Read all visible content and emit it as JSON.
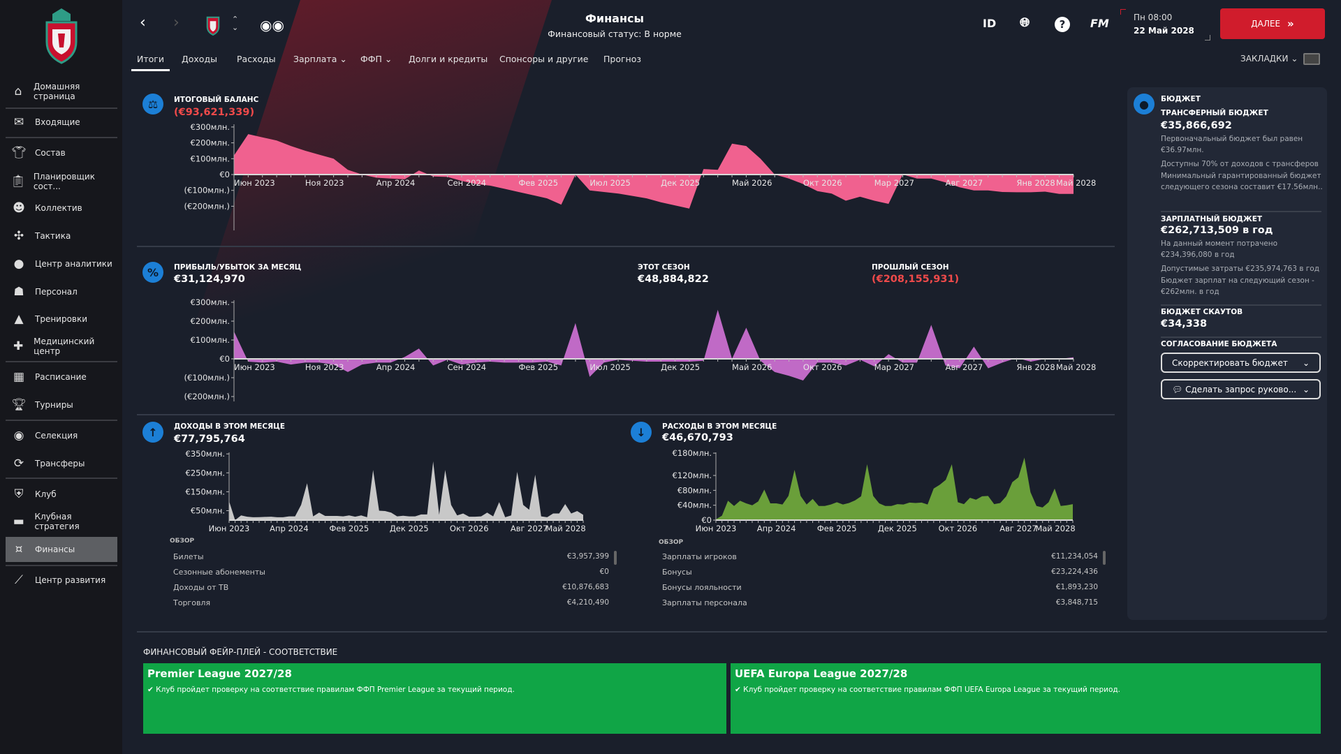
{
  "sidebar": {
    "items": [
      {
        "label": "Домашняя страница",
        "icon": "home-icon"
      },
      {
        "label": "Входящие",
        "icon": "mail-icon"
      },
      {
        "label": "Состав",
        "icon": "shirt-icon"
      },
      {
        "label": "Планировщик сост...",
        "icon": "clipboard-icon"
      },
      {
        "label": "Коллектив",
        "icon": "head-icon"
      },
      {
        "label": "Тактика",
        "icon": "tactics-icon"
      },
      {
        "label": "Центр аналитики",
        "icon": "analytics-icon"
      },
      {
        "label": "Персонал",
        "icon": "staff-icon"
      },
      {
        "label": "Тренировки",
        "icon": "cone-icon"
      },
      {
        "label": "Медицинский центр",
        "icon": "medical-icon"
      },
      {
        "label": "Расписание",
        "icon": "calendar-icon"
      },
      {
        "label": "Турниры",
        "icon": "trophy-icon"
      },
      {
        "label": "Селекция",
        "icon": "binoculars-icon"
      },
      {
        "label": "Трансферы",
        "icon": "transfer-icon"
      },
      {
        "label": "Клуб",
        "icon": "shield-icon"
      },
      {
        "label": "Клубная стратегия",
        "icon": "briefcase-icon"
      },
      {
        "label": "Финансы",
        "icon": "money-icon",
        "active": true
      },
      {
        "label": "Центр развития",
        "icon": "growth-icon"
      }
    ]
  },
  "header": {
    "title": "Финансы",
    "subtitle": "Финансовый статус: В норме",
    "id_label": "ID",
    "fm_label": "FM",
    "day_time": "Пн 08:00",
    "date": "22 Май 2028",
    "next_label": "ДАЛЕЕ",
    "bookmarks_label": "ЗАКЛАДКИ"
  },
  "tabs": [
    {
      "label": "Итоги",
      "active": true
    },
    {
      "label": "Доходы"
    },
    {
      "label": "Расходы"
    },
    {
      "label": "Зарплата ⌄"
    },
    {
      "label": "ФФП ⌄"
    },
    {
      "label": "Долги и кредиты"
    },
    {
      "label": "Спонсоры и другие"
    },
    {
      "label": "Прогноз"
    }
  ],
  "balance": {
    "title": "ИТОГОВЫЙ БАЛАНС",
    "value": "(€93,621,339)"
  },
  "profit": {
    "title": "ПРИБЫЛЬ/УБЫТОК ЗА МЕСЯЦ",
    "value": "€31,124,970",
    "this_season_label": "ЭТОТ СЕЗОН",
    "this_season_value": "€48,884,822",
    "last_season_label": "ПРОШЛЫЙ СЕЗОН",
    "last_season_value": "(€208,155,931)"
  },
  "income": {
    "title": "ДОХОДЫ В ЭТОМ МЕСЯЦЕ",
    "value": "€77,795,764",
    "overview_label": "ОБЗОР",
    "rows": [
      {
        "name": "Билеты",
        "value": "€3,957,399"
      },
      {
        "name": "Сезонные абонементы",
        "value": "€0"
      },
      {
        "name": "Доходы от ТВ",
        "value": "€10,876,683"
      },
      {
        "name": "Торговля",
        "value": "€4,210,490"
      }
    ]
  },
  "expenses": {
    "title": "РАСХОДЫ В ЭТОМ МЕСЯЦЕ",
    "value": "€46,670,793",
    "overview_label": "ОБЗОР",
    "rows": [
      {
        "name": "Зарплаты игроков",
        "value": "€11,234,054"
      },
      {
        "name": "Бонусы",
        "value": "€23,224,436"
      },
      {
        "name": "Бонусы лояльности",
        "value": "€1,893,230"
      },
      {
        "name": "Зарплаты персонала",
        "value": "€3,848,715"
      }
    ]
  },
  "budget": {
    "title": "БЮДЖЕТ",
    "transfer_title": "ТРАНСФЕРНЫЙ БЮДЖЕТ",
    "transfer_value": "€35,866,692",
    "transfer_note1": "Первоначальный бюджет был равен €36.97млн.",
    "transfer_note2": "Доступны 70% от доходов с трансферов",
    "transfer_note3": "Минимальный гарантированный бюджет следующего сезона составит €17.56млн..",
    "wage_title": "ЗАРПЛАТНЫЙ БЮДЖЕТ",
    "wage_value": "€262,713,509 в год",
    "wage_note1": "На данный момент потрачено €234,396,080 в год",
    "wage_note2": "Допустимые затраты €235,974,763 в год",
    "wage_note3": "Бюджет зарплат на следующий сезон - €262млн. в год",
    "scout_title": "БЮДЖЕТ СКАУТОВ",
    "scout_value": "€34,338",
    "agree_title": "СОГЛАСОВАНИЕ БЮДЖЕТА",
    "adjust_label": "Скорректировать бюджет",
    "request_label": "Сделать запрос руково..."
  },
  "ffp": {
    "title": "ФИНАНСОВЫЙ ФЕЙР-ПЛЕЙ - СООТВЕТСТВИЕ",
    "cards": [
      {
        "league": "Premier League 2027/28",
        "text": "Клуб пройдет проверку на соответствие правилам ФФП Premier League за текущий период."
      },
      {
        "league": "UEFA Europa League 2027/28",
        "text": "Клуб пройдет проверку на соответствие правилам ФФП UEFA Europa League за текущий период."
      }
    ],
    "color": "#10a546"
  },
  "colors": {
    "accent": "#d01c2c",
    "negative": "#f04a4a",
    "balance_fill": "#f0618f",
    "profit_fill": "#c06ac6",
    "income_fill": "#c8c8c8",
    "expense_fill": "#6a9f3a"
  },
  "chart_data": [
    {
      "type": "area",
      "id": "balance",
      "ylim": [
        -200,
        300
      ],
      "yticks": [
        "€300млн.",
        "€200млн.",
        "€100млн.",
        "€0",
        "(€100млн.)",
        "(€200млн.)"
      ],
      "ytick_values": [
        300,
        200,
        100,
        0,
        -100,
        -200
      ],
      "x_start": "Июн 2023",
      "x_end": "Май 2028",
      "xticks": [
        "Июн 2023",
        "Ноя 2023",
        "Апр 2024",
        "Сен 2024",
        "Фев 2025",
        "Июл 2025",
        "Дек 2025",
        "Май 2026",
        "Окт 2026",
        "Мар 2027",
        "Авг 2027",
        "Янв 2028",
        "Май 2028"
      ],
      "xtick_months": [
        0,
        5,
        10,
        15,
        20,
        25,
        30,
        35,
        40,
        45,
        50,
        55,
        59
      ],
      "values": [
        120,
        255,
        235,
        215,
        180,
        150,
        125,
        100,
        30,
        0,
        -20,
        -25,
        -30,
        25,
        -12,
        -15,
        -40,
        -60,
        -70,
        -90,
        -110,
        -130,
        -150,
        -190,
        0,
        -100,
        -110,
        -120,
        -135,
        -150,
        -175,
        -195,
        -215,
        35,
        30,
        195,
        180,
        100,
        0,
        -25,
        -60,
        -105,
        -120,
        -165,
        -140,
        -165,
        -185,
        0,
        -25,
        -25,
        -50,
        -80,
        -100,
        -100,
        -110,
        -112,
        -112,
        -108,
        -122,
        -122
      ]
    },
    {
      "type": "area",
      "id": "profit",
      "ylim": [
        -200,
        300
      ],
      "yticks": [
        "€300млн.",
        "€200млн.",
        "€100млн.",
        "€0",
        "(€100млн.)",
        "(€200млн.)"
      ],
      "ytick_values": [
        300,
        200,
        100,
        0,
        -100,
        -200
      ],
      "xticks": [
        "Июн 2023",
        "Ноя 2023",
        "Апр 2024",
        "Сен 2024",
        "Фев 2025",
        "Июл 2025",
        "Дек 2025",
        "Май 2026",
        "Окт 2026",
        "Мар 2027",
        "Авг 2027",
        "Янв 2028",
        "Май 2028"
      ],
      "xtick_months": [
        0,
        5,
        10,
        15,
        20,
        25,
        30,
        35,
        40,
        45,
        50,
        55,
        59
      ],
      "values": [
        145,
        -15,
        -20,
        -15,
        -30,
        -20,
        -20,
        -30,
        -70,
        -30,
        -20,
        -20,
        10,
        55,
        -35,
        -5,
        -30,
        -20,
        -15,
        -20,
        -20,
        -20,
        -15,
        -35,
        190,
        -95,
        -20,
        -5,
        -10,
        -15,
        -15,
        -15,
        -15,
        -10,
        260,
        0,
        165,
        -10,
        -70,
        -90,
        -115,
        -20,
        -20,
        -35,
        -5,
        -40,
        25,
        -20,
        -20,
        180,
        -35,
        -50,
        65,
        -50,
        -20,
        5,
        -15,
        0,
        0,
        8
      ]
    },
    {
      "type": "area",
      "id": "income",
      "ylim": [
        0,
        350
      ],
      "yticks": [
        "€350млн.",
        "€250млн.",
        "€150млн.",
        "€50млн."
      ],
      "ytick_values": [
        350,
        250,
        150,
        50
      ],
      "xticks": [
        "Июн 2023",
        "Апр 2024",
        "Фев 2025",
        "Дек 2025",
        "Окт 2026",
        "Авг 2027",
        "Май 2028"
      ],
      "xtick_months": [
        0,
        10,
        20,
        30,
        40,
        50,
        59
      ],
      "values": [
        100,
        0,
        25,
        18,
        15,
        16,
        17,
        18,
        15,
        15,
        20,
        20,
        80,
        195,
        20,
        40,
        22,
        22,
        22,
        20,
        25,
        18,
        25,
        15,
        265,
        50,
        48,
        40,
        20,
        23,
        20,
        20,
        30,
        30,
        310,
        28,
        265,
        80,
        25,
        35,
        18,
        18,
        20,
        40,
        20,
        95,
        15,
        25,
        255,
        80,
        55,
        240,
        20,
        15,
        35,
        35,
        85,
        35,
        48,
        28
      ]
    },
    {
      "type": "area",
      "id": "expenses",
      "ylim": [
        0,
        180
      ],
      "yticks": [
        "€180млн.",
        "€120млн.",
        "€80млн.",
        "€40млн.",
        "€0"
      ],
      "ytick_values": [
        180,
        120,
        80,
        40,
        0
      ],
      "xticks": [
        "Июн 2023",
        "Апр 2024",
        "Фев 2025",
        "Дек 2025",
        "Окт 2026",
        "Авг 2027",
        "Май 2028"
      ],
      "xtick_months": [
        0,
        10,
        20,
        30,
        40,
        50,
        59
      ],
      "values": [
        2,
        12,
        52,
        38,
        52,
        45,
        40,
        50,
        82,
        45,
        45,
        42,
        65,
        135,
        65,
        42,
        57,
        38,
        38,
        42,
        48,
        42,
        46,
        53,
        64,
        150,
        65,
        45,
        38,
        38,
        43,
        42,
        47,
        46,
        47,
        42,
        85,
        95,
        108,
        150,
        48,
        43,
        60,
        55,
        64,
        65,
        43,
        46,
        64,
        102,
        115,
        168,
        75,
        38,
        34,
        48,
        85,
        38,
        40,
        43
      ]
    }
  ]
}
